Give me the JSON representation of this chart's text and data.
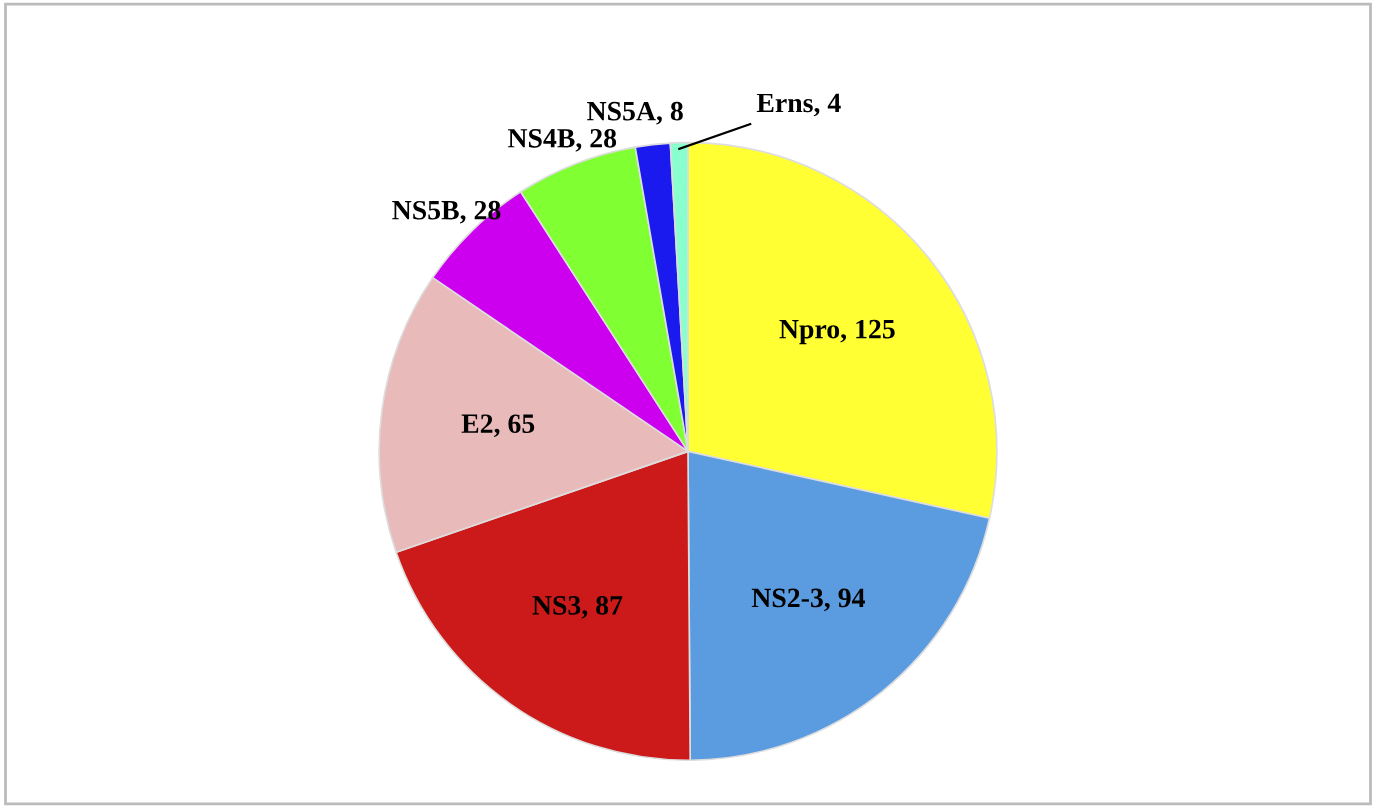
{
  "chart_data": {
    "type": "pie",
    "categories": [
      "Npro, 125",
      "NS2-3, 94",
      "NS3, 87",
      "E2, 65",
      "NS5B, 28",
      "NS4B, 28",
      "NS5A, 8",
      "Erns, 4"
    ],
    "values": [
      125,
      94,
      87,
      65,
      28,
      28,
      8,
      4
    ],
    "colors": [
      "#ffff33",
      "#5b9be0",
      "#cc1a1a",
      "#e8baba",
      "#cc00ee",
      "#80ff33",
      "#1a1aee",
      "#88ffcc"
    ]
  }
}
